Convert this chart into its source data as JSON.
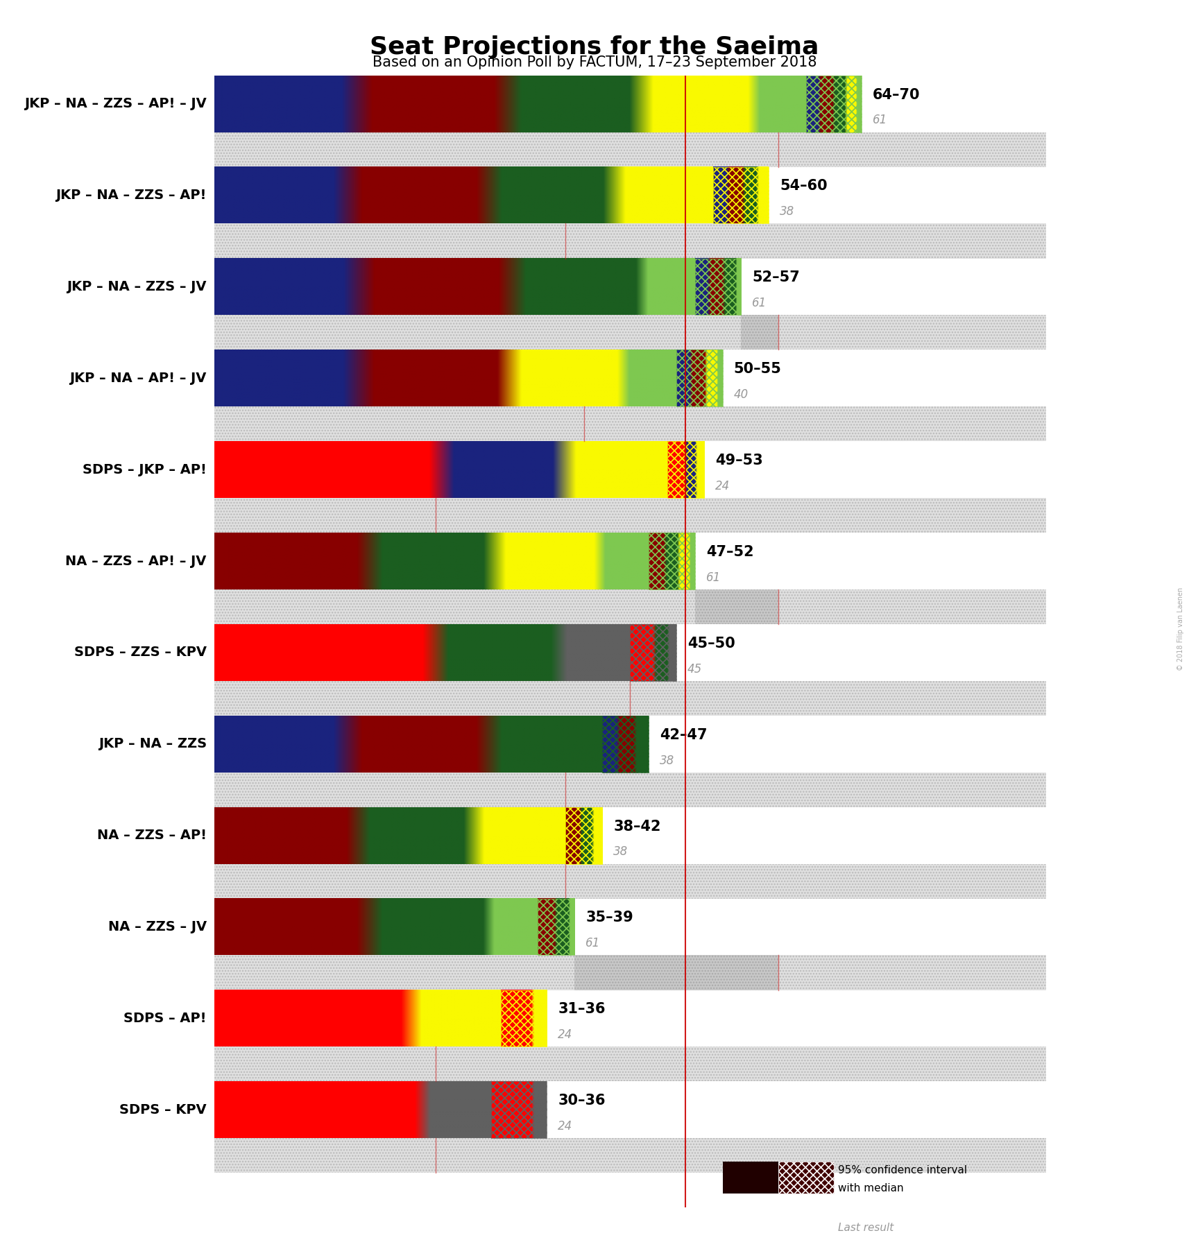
{
  "title": "Seat Projections for the Saeima",
  "subtitle": "Based on an Opinion Poll by FACTUM, 17–23 September 2018",
  "copyright": "© 2018 Filip van Laenen",
  "majority_line": 51,
  "x_max_seats": 100,
  "coalitions": [
    {
      "label": "JKP – NA – ZZS – AP! – JV",
      "range": "64–70",
      "ci_low": 64,
      "ci_high": 70,
      "last_result": 61,
      "parties": [
        "JKP",
        "NA",
        "ZZS",
        "AP!",
        "JV"
      ],
      "colors": [
        "#1a237e",
        "#880000",
        "#1b5e20",
        "#f9f900",
        "#7ec850"
      ],
      "shares": [
        15,
        18,
        16,
        14,
        7
      ]
    },
    {
      "label": "JKP – NA – ZZS – AP!",
      "range": "54–60",
      "ci_low": 54,
      "ci_high": 60,
      "last_result": 38,
      "parties": [
        "JKP",
        "NA",
        "ZZS",
        "AP!"
      ],
      "colors": [
        "#1a237e",
        "#880000",
        "#1b5e20",
        "#f9f900"
      ],
      "shares": [
        15,
        18,
        16,
        14
      ]
    },
    {
      "label": "JKP – NA – ZZS – JV",
      "range": "52–57",
      "ci_low": 52,
      "ci_high": 57,
      "last_result": 61,
      "parties": [
        "JKP",
        "NA",
        "ZZS",
        "JV"
      ],
      "colors": [
        "#1a237e",
        "#880000",
        "#1b5e20",
        "#7ec850"
      ],
      "shares": [
        15,
        18,
        16,
        7
      ]
    },
    {
      "label": "JKP – NA – AP! – JV",
      "range": "50–55",
      "ci_low": 50,
      "ci_high": 55,
      "last_result": 40,
      "parties": [
        "JKP",
        "NA",
        "AP!",
        "JV"
      ],
      "colors": [
        "#1a237e",
        "#880000",
        "#f9f900",
        "#7ec850"
      ],
      "shares": [
        15,
        18,
        14,
        7
      ]
    },
    {
      "label": "SDPS – JKP – AP!",
      "range": "49–53",
      "ci_low": 49,
      "ci_high": 53,
      "last_result": 24,
      "parties": [
        "SDPS",
        "JKP",
        "AP!"
      ],
      "colors": [
        "#ff0000",
        "#1a237e",
        "#f9f900"
      ],
      "shares": [
        26,
        15,
        14
      ]
    },
    {
      "label": "NA – ZZS – AP! – JV",
      "range": "47–52",
      "ci_low": 47,
      "ci_high": 52,
      "last_result": 61,
      "parties": [
        "NA",
        "ZZS",
        "AP!",
        "JV"
      ],
      "colors": [
        "#880000",
        "#1b5e20",
        "#f9f900",
        "#7ec850"
      ],
      "shares": [
        18,
        16,
        14,
        7
      ]
    },
    {
      "label": "SDPS – ZZS – KPV",
      "range": "45–50",
      "ci_low": 45,
      "ci_high": 50,
      "last_result": 45,
      "parties": [
        "SDPS",
        "ZZS",
        "KPV"
      ],
      "colors": [
        "#ff0000",
        "#1b5e20",
        "#606060"
      ],
      "shares": [
        26,
        16,
        10
      ]
    },
    {
      "label": "JKP – NA – ZZS",
      "range": "42–47",
      "ci_low": 42,
      "ci_high": 47,
      "last_result": 38,
      "parties": [
        "JKP",
        "NA",
        "ZZS"
      ],
      "colors": [
        "#1a237e",
        "#880000",
        "#1b5e20"
      ],
      "shares": [
        15,
        18,
        16
      ]
    },
    {
      "label": "NA – ZZS – AP!",
      "range": "38–42",
      "ci_low": 38,
      "ci_high": 42,
      "last_result": 38,
      "parties": [
        "NA",
        "ZZS",
        "AP!"
      ],
      "colors": [
        "#880000",
        "#1b5e20",
        "#f9f900"
      ],
      "shares": [
        18,
        16,
        14
      ]
    },
    {
      "label": "NA – ZZS – JV",
      "range": "35–39",
      "ci_low": 35,
      "ci_high": 39,
      "last_result": 61,
      "parties": [
        "NA",
        "ZZS",
        "JV"
      ],
      "colors": [
        "#880000",
        "#1b5e20",
        "#7ec850"
      ],
      "shares": [
        18,
        16,
        7
      ]
    },
    {
      "label": "SDPS – AP!",
      "range": "31–36",
      "ci_low": 31,
      "ci_high": 36,
      "last_result": 24,
      "parties": [
        "SDPS",
        "AP!"
      ],
      "colors": [
        "#ff0000",
        "#f9f900"
      ],
      "shares": [
        26,
        14
      ]
    },
    {
      "label": "SDPS – KPV",
      "range": "30–36",
      "ci_low": 30,
      "ci_high": 36,
      "last_result": 24,
      "parties": [
        "SDPS",
        "KPV"
      ],
      "colors": [
        "#ff0000",
        "#606060"
      ],
      "shares": [
        26,
        10
      ]
    }
  ],
  "background_color": "#ffffff",
  "dot_bg_color": "#d8d8d8",
  "dot_color": "#aaaaaa",
  "last_result_color": "#999999",
  "majority_color": "#cc0000"
}
